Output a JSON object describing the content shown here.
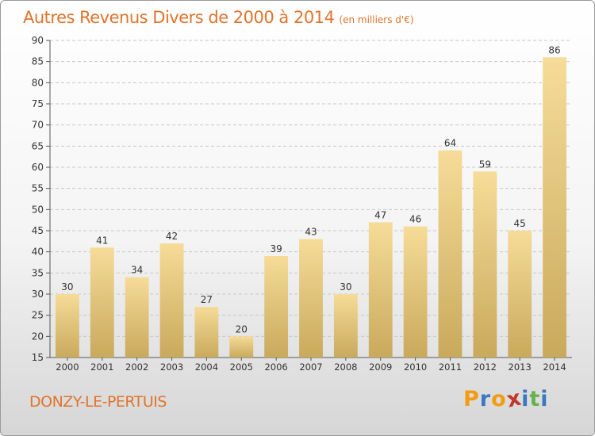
{
  "title": "Autres Revenus Divers de 2000 à 2014",
  "unit": "(en milliers d'€)",
  "commune": "DONZY-LE-PERTUIS",
  "brand": {
    "letters": [
      "P",
      "r",
      "o",
      "x",
      "i",
      "t",
      "i"
    ],
    "colors": [
      "#f39c12",
      "#3a78c3",
      "#f39c12",
      "#c0392b",
      "#3a78c3",
      "#6ab04c",
      "#3a78c3"
    ]
  },
  "colors": {
    "bar_light": "#f6dc98",
    "bar_dark": "#c9a95c",
    "axis": "#555555",
    "grid": "#c8c8c8",
    "text": "#333333",
    "accent": "#e0742c"
  },
  "chart_data": {
    "type": "bar",
    "title": "Autres Revenus Divers de 2000 à 2014",
    "subtitle": "(en milliers d'€)",
    "categories": [
      "2000",
      "2001",
      "2002",
      "2003",
      "2004",
      "2005",
      "2006",
      "2007",
      "2008",
      "2009",
      "2010",
      "2011",
      "2012",
      "2013",
      "2014"
    ],
    "values": [
      30,
      41,
      34,
      42,
      27,
      20,
      39,
      43,
      30,
      47,
      46,
      64,
      59,
      45,
      86
    ],
    "ylim": [
      15,
      90
    ],
    "yticks": [
      15,
      20,
      25,
      30,
      35,
      40,
      45,
      50,
      55,
      60,
      65,
      70,
      75,
      80,
      85,
      90
    ],
    "grid": "horizontal dashed",
    "legend": "none"
  }
}
